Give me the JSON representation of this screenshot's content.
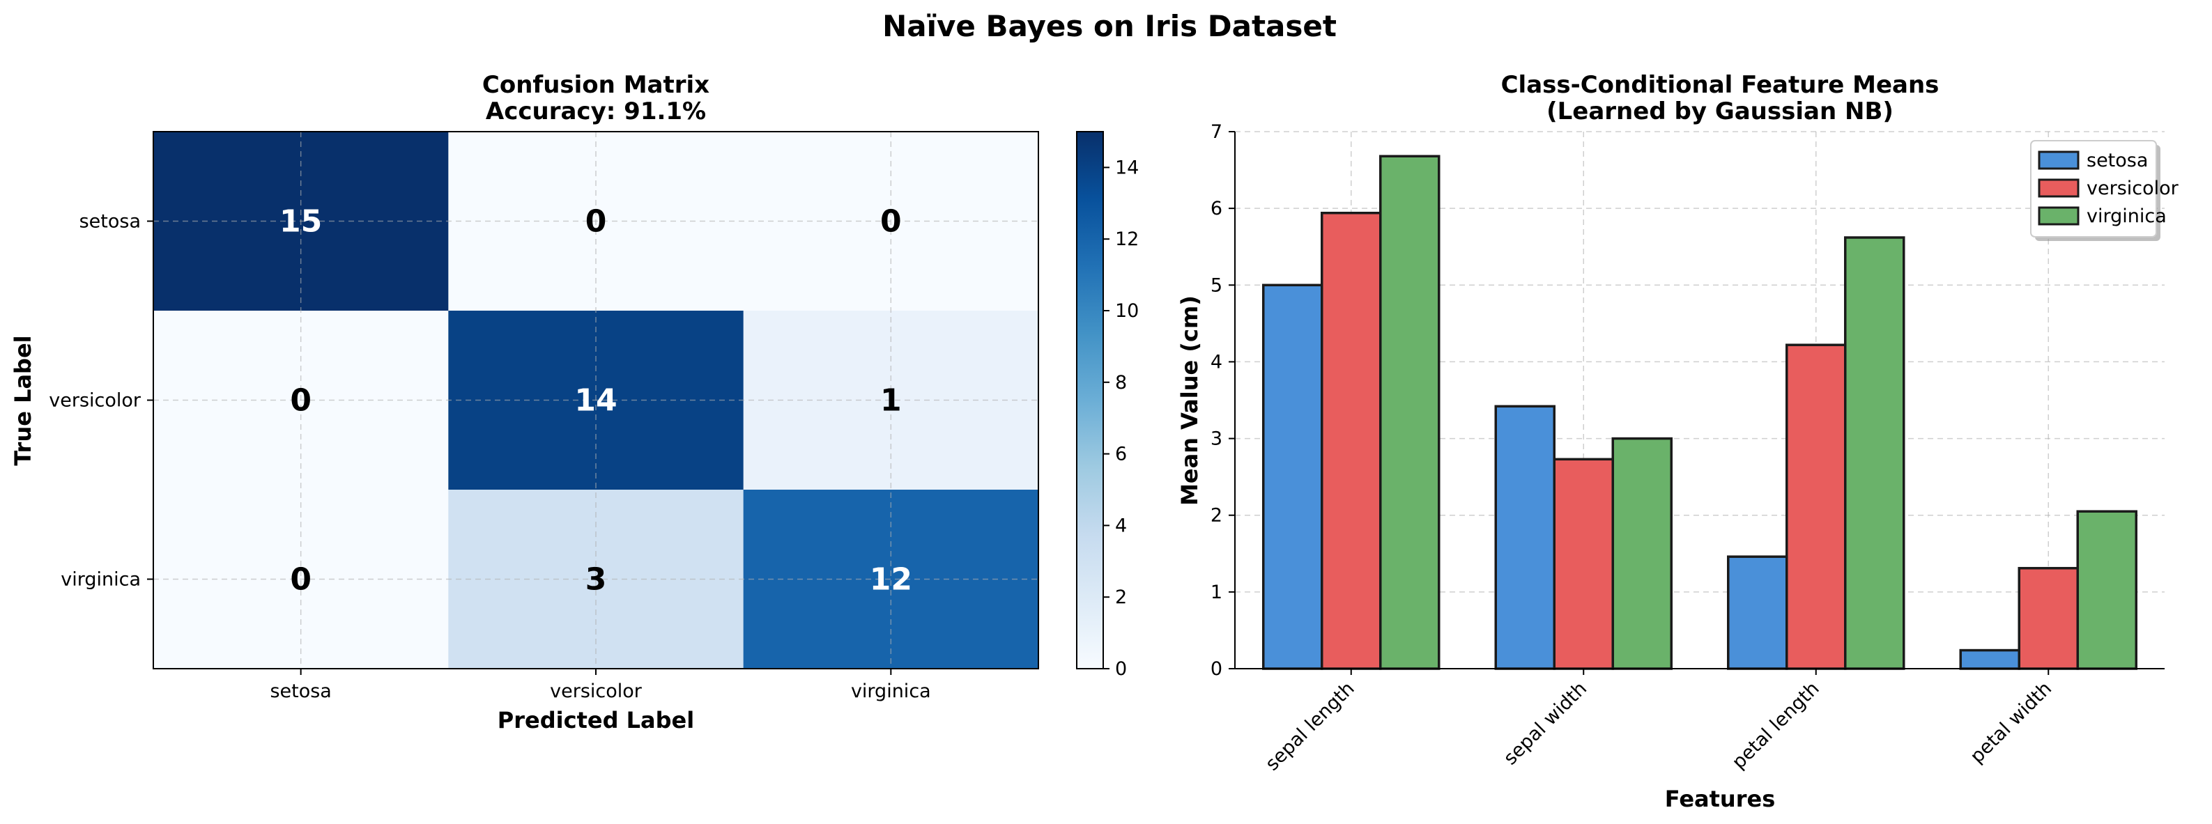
{
  "figure_title": "Naïve Bayes on Iris Dataset",
  "chart_data": [
    {
      "type": "heatmap",
      "title": "Confusion Matrix",
      "subtitle": "Accuracy: 91.1%",
      "xlabel": "Predicted Label",
      "ylabel": "True Label",
      "x_categories": [
        "setosa",
        "versicolor",
        "virginica"
      ],
      "y_categories": [
        "setosa",
        "versicolor",
        "virginica"
      ],
      "values": [
        [
          15,
          0,
          0
        ],
        [
          0,
          14,
          1
        ],
        [
          0,
          3,
          12
        ]
      ],
      "colormap": "Blues",
      "colorbar": {
        "range": [
          0,
          15
        ],
        "ticks": [
          0,
          2,
          4,
          6,
          8,
          10,
          12,
          14
        ]
      },
      "grid": true
    },
    {
      "type": "bar",
      "title": "Class-Conditional Feature Means",
      "subtitle": "(Learned by Gaussian NB)",
      "xlabel": "Features",
      "ylabel": "Mean Value (cm)",
      "categories": [
        "sepal length",
        "sepal width",
        "petal length",
        "petal width"
      ],
      "series": [
        {
          "name": "setosa",
          "color": "#4a90d9",
          "values": [
            5.0,
            3.42,
            1.46,
            0.24
          ]
        },
        {
          "name": "versicolor",
          "color": "#e85d5d",
          "values": [
            5.94,
            2.73,
            4.22,
            1.31
          ]
        },
        {
          "name": "virginica",
          "color": "#6ab26a",
          "values": [
            6.68,
            3.0,
            5.62,
            2.05
          ]
        }
      ],
      "ylim": [
        0,
        7
      ],
      "yticks": [
        0,
        1,
        2,
        3,
        4,
        5,
        6,
        7
      ],
      "legend": "top-right",
      "grid": true
    }
  ]
}
